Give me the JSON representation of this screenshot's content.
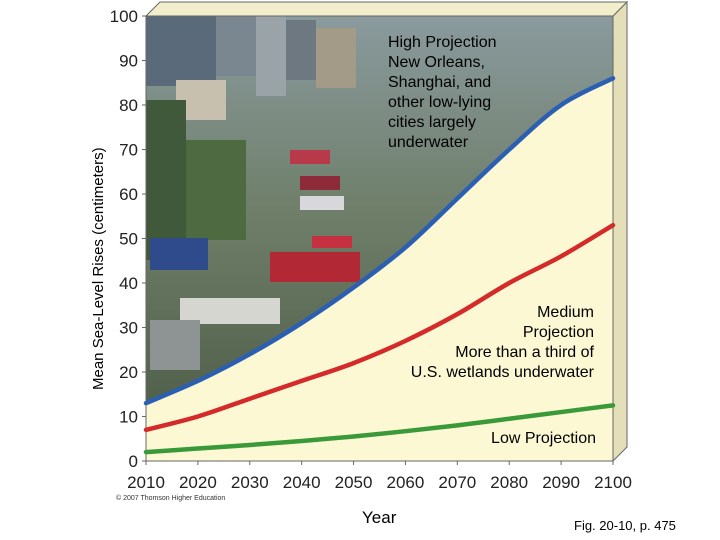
{
  "chart_data": {
    "type": "line",
    "xlabel": "Year",
    "ylabel": "Mean Sea-Level Rises (centimeters)",
    "x": [
      2010,
      2020,
      2030,
      2040,
      2050,
      2060,
      2070,
      2080,
      2090,
      2100
    ],
    "xlim": [
      2010,
      2100
    ],
    "ylim": [
      0,
      100
    ],
    "x_ticks": [
      "2010",
      "2020",
      "2030",
      "2040",
      "2050",
      "2060",
      "2070",
      "2080",
      "2090",
      "2100"
    ],
    "y_ticks": [
      "0",
      "10",
      "20",
      "30",
      "40",
      "50",
      "60",
      "70",
      "80",
      "90",
      "100"
    ],
    "series": [
      {
        "name": "High Projection",
        "color": "#2b5fb4",
        "values": [
          13,
          18,
          24,
          31,
          39,
          48,
          59,
          70,
          80,
          86
        ]
      },
      {
        "name": "Medium Projection",
        "color": "#d42a2a",
        "values": [
          7,
          10,
          14,
          18,
          22,
          27,
          33,
          40,
          46,
          53
        ]
      },
      {
        "name": "Low Projection",
        "color": "#3a9a3a",
        "values": [
          2,
          2.8,
          3.6,
          4.5,
          5.5,
          6.7,
          8,
          9.5,
          11,
          12.5
        ]
      }
    ],
    "annotations": [
      [
        "High Projection",
        "New Orleans,",
        "Shanghai, and",
        "other low-lying",
        "cities largely",
        "underwater"
      ],
      [
        "Medium",
        "Projection",
        "More than a third of",
        "U.S. wetlands underwater"
      ],
      [
        "Low Projection"
      ]
    ],
    "grid": false,
    "colors": {
      "panel": "#fcf8d4",
      "panel_side": "#e4dfb8",
      "frame": "#666666"
    }
  },
  "copyright": "© 2007 Thomson Higher Education",
  "caption": "Fig. 20-10, p. 475"
}
